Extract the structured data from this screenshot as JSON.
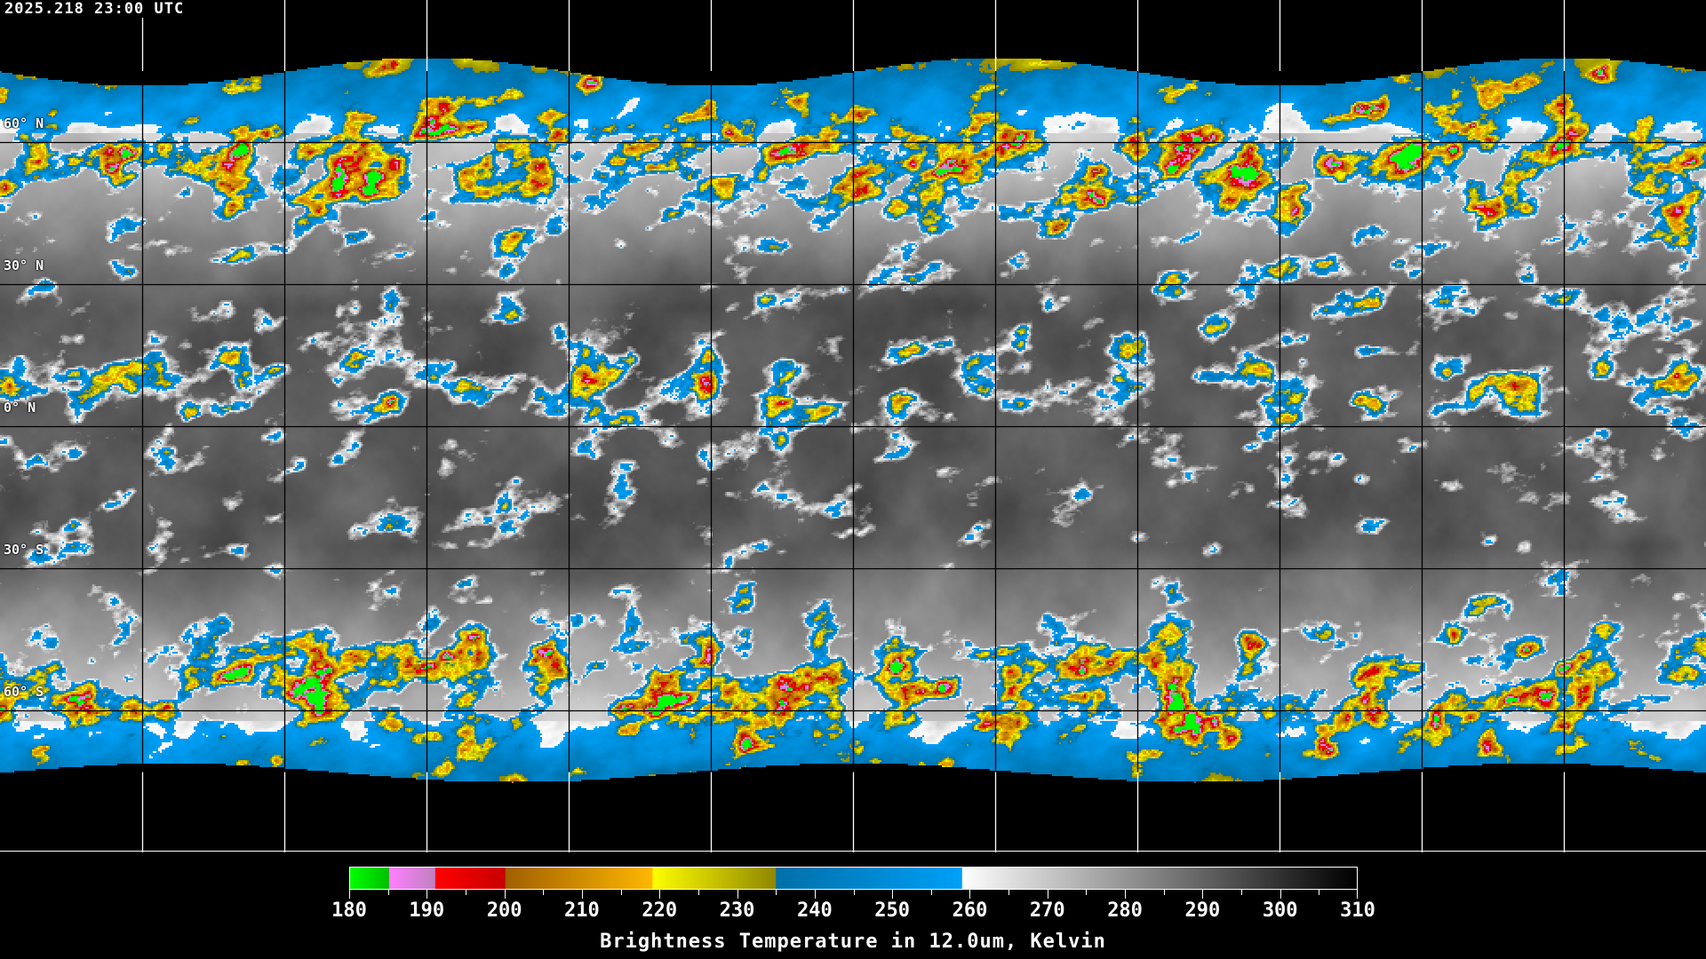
{
  "header": {
    "timestamp": "2025.218 23:00 UTC"
  },
  "map": {
    "projection": "equirectangular",
    "grid_lon_step_deg": 30,
    "grid_lat_step_deg": 30,
    "lat_labels": [
      "60° N",
      "30° N",
      "0° N",
      "30° S",
      "60° S"
    ],
    "lat_values": [
      60,
      30,
      0,
      -30,
      -60
    ],
    "coverage_lat": [
      75,
      -73
    ],
    "grid_color": "#000000",
    "outer_grid_color": "#ffffff",
    "coastline_color_inside": "#000000",
    "coastline_color_outside": "#ffffff"
  },
  "colorbar": {
    "min": 180,
    "max": 310,
    "tick_labels": [
      "180",
      "190",
      "200",
      "210",
      "220",
      "230",
      "240",
      "250",
      "260",
      "270",
      "280",
      "290",
      "300",
      "310"
    ],
    "minor_tick_step": 5,
    "title": "Brightness Temperature in 12.0um, Kelvin",
    "segments": [
      {
        "from": 180,
        "to": 185,
        "start": "#00ff00",
        "end": "#00c000"
      },
      {
        "from": 185,
        "to": 191,
        "start": "#ff80ff",
        "end": "#c080c0"
      },
      {
        "from": 191,
        "to": 200,
        "start": "#ff0000",
        "end": "#c80000"
      },
      {
        "from": 200,
        "to": 219,
        "start": "#a06000",
        "end": "#ffb800"
      },
      {
        "from": 219,
        "to": 235,
        "start": "#ffff00",
        "end": "#908800"
      },
      {
        "from": 235,
        "to": 259,
        "start": "#0070a8",
        "end": "#00a0f8"
      },
      {
        "from": 259,
        "to": 310,
        "start": "#ffffff",
        "end": "#000000"
      }
    ]
  }
}
